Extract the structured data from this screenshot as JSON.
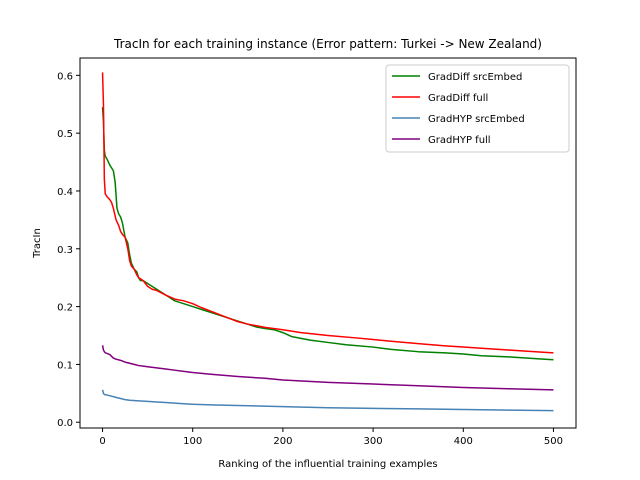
{
  "chart_data": {
    "type": "line",
    "title": "TracIn for each training instance (Error pattern: Turkei -> New Zealand)",
    "xlabel": "Ranking of the influential training examples",
    "ylabel": "TracIn",
    "xlim": [
      -25,
      525
    ],
    "ylim": [
      -0.01,
      0.63
    ],
    "xticks": [
      0,
      100,
      200,
      300,
      400,
      500
    ],
    "yticks": [
      0.0,
      0.1,
      0.2,
      0.3,
      0.4,
      0.5,
      0.6
    ],
    "grid": false,
    "legend_position": "top-right",
    "series": [
      {
        "name": "GradDiff srcEmbed",
        "color": "#008000",
        "x": [
          0,
          1,
          2,
          3,
          5,
          8,
          10,
          12,
          14,
          16,
          18,
          20,
          22,
          25,
          28,
          30,
          32,
          35,
          38,
          40,
          42,
          45,
          50,
          55,
          60,
          65,
          70,
          75,
          80,
          90,
          100,
          110,
          120,
          130,
          140,
          150,
          160,
          170,
          180,
          190,
          200,
          210,
          220,
          230,
          250,
          270,
          300,
          320,
          350,
          380,
          400,
          420,
          450,
          480,
          500
        ],
        "y": [
          0.545,
          0.52,
          0.47,
          0.46,
          0.455,
          0.445,
          0.44,
          0.435,
          0.415,
          0.37,
          0.36,
          0.355,
          0.345,
          0.32,
          0.31,
          0.29,
          0.275,
          0.265,
          0.26,
          0.25,
          0.245,
          0.245,
          0.24,
          0.235,
          0.23,
          0.225,
          0.22,
          0.215,
          0.21,
          0.205,
          0.2,
          0.195,
          0.19,
          0.185,
          0.18,
          0.175,
          0.17,
          0.165,
          0.162,
          0.16,
          0.155,
          0.148,
          0.145,
          0.142,
          0.138,
          0.134,
          0.13,
          0.126,
          0.122,
          0.12,
          0.118,
          0.115,
          0.113,
          0.11,
          0.108
        ]
      },
      {
        "name": "GradDiff full",
        "color": "#ff0000",
        "x": [
          0,
          1,
          2,
          3,
          5,
          8,
          10,
          12,
          15,
          18,
          20,
          22,
          25,
          28,
          30,
          32,
          35,
          38,
          40,
          45,
          50,
          55,
          60,
          70,
          80,
          90,
          100,
          110,
          120,
          130,
          140,
          150,
          160,
          170,
          180,
          200,
          220,
          250,
          280,
          300,
          320,
          350,
          380,
          400,
          420,
          450,
          480,
          500
        ],
        "y": [
          0.605,
          0.55,
          0.42,
          0.395,
          0.39,
          0.385,
          0.38,
          0.37,
          0.35,
          0.34,
          0.33,
          0.325,
          0.32,
          0.3,
          0.28,
          0.27,
          0.265,
          0.255,
          0.25,
          0.245,
          0.235,
          0.23,
          0.228,
          0.22,
          0.213,
          0.21,
          0.205,
          0.198,
          0.192,
          0.186,
          0.18,
          0.174,
          0.17,
          0.167,
          0.164,
          0.16,
          0.155,
          0.15,
          0.146,
          0.143,
          0.14,
          0.136,
          0.132,
          0.13,
          0.128,
          0.125,
          0.122,
          0.12
        ]
      },
      {
        "name": "GradHYP srcEmbed",
        "color": "#4682b4",
        "x": [
          0,
          1,
          2,
          5,
          10,
          15,
          20,
          25,
          30,
          40,
          50,
          60,
          70,
          80,
          90,
          100,
          120,
          150,
          200,
          250,
          300,
          350,
          400,
          450,
          500
        ],
        "y": [
          0.056,
          0.05,
          0.048,
          0.047,
          0.045,
          0.043,
          0.041,
          0.039,
          0.038,
          0.037,
          0.036,
          0.035,
          0.034,
          0.033,
          0.032,
          0.031,
          0.03,
          0.029,
          0.027,
          0.025,
          0.024,
          0.023,
          0.022,
          0.021,
          0.02
        ]
      },
      {
        "name": "GradHYP full",
        "color": "#800080",
        "x": [
          0,
          1,
          2,
          3,
          5,
          8,
          10,
          12,
          15,
          20,
          25,
          30,
          35,
          40,
          45,
          50,
          60,
          70,
          80,
          90,
          100,
          120,
          150,
          180,
          200,
          250,
          300,
          350,
          400,
          450,
          500
        ],
        "y": [
          0.133,
          0.125,
          0.122,
          0.12,
          0.119,
          0.117,
          0.114,
          0.111,
          0.109,
          0.107,
          0.104,
          0.102,
          0.1,
          0.098,
          0.097,
          0.096,
          0.094,
          0.092,
          0.09,
          0.088,
          0.086,
          0.083,
          0.079,
          0.076,
          0.073,
          0.069,
          0.066,
          0.063,
          0.06,
          0.058,
          0.056
        ]
      }
    ]
  }
}
